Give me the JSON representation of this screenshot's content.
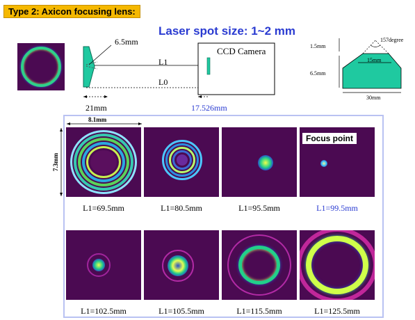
{
  "header": {
    "type_label": "Type 2: Axicon focusing lens:",
    "spot_size": "Laser spot size: 1~2 mm"
  },
  "setup": {
    "lens_height": "6.5mm",
    "l1": "L1",
    "l0": "L0",
    "camera": "CCD Camera",
    "gap_lens": "21mm",
    "gap_camera": "17.526mm"
  },
  "axicon": {
    "h_top": "1.5mm",
    "h_bottom": "6.5mm",
    "angle": "157degree",
    "inner_width": "15mm",
    "base_width": "30mm"
  },
  "grid": {
    "width_label": "8.1mm",
    "height_label": "7.3mm",
    "focus_label": "Focus point",
    "row1": [
      "L1=69.5mm",
      "L1=80.5mm",
      "L1=95.5mm",
      "L1=99.5mm"
    ],
    "row2": [
      "L1=102.5mm",
      "L1=105.5mm",
      "L1=115.5mm",
      "L1=125.5mm"
    ]
  },
  "colors": {
    "badge": "#f5b800",
    "headline": "#2a3bd1",
    "tile_bg": "#4b0a52",
    "lens": "#1fc9a0"
  }
}
